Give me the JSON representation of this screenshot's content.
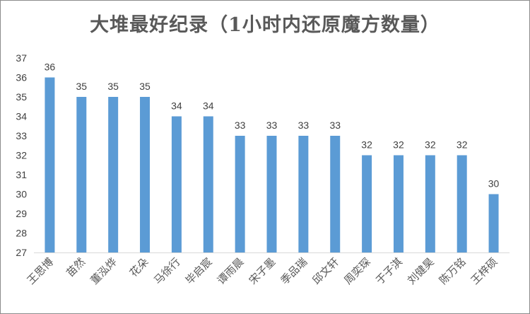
{
  "chart_data": {
    "type": "bar",
    "title": "大堆最好纪录（1小时内还原魔方数量）",
    "xlabel": "",
    "ylabel": "",
    "categories": [
      "王思博",
      "苗然",
      "董泓烨",
      "花朵",
      "马徐行",
      "毕启宸",
      "谭雨晨",
      "宋子墨",
      "季品瑞",
      "邱文轩",
      "周奕琛",
      "于子淇",
      "刘健昊",
      "陈万铭",
      "王梓硕"
    ],
    "values": [
      36,
      35,
      35,
      35,
      34,
      34,
      33,
      33,
      33,
      33,
      32,
      32,
      32,
      32,
      30
    ],
    "ylim": [
      27,
      37
    ],
    "yticks": [
      "27",
      "28",
      "29",
      "30",
      "31",
      "32",
      "33",
      "34",
      "35",
      "36",
      "37"
    ],
    "grid": false,
    "legend": "none",
    "bar_color": "#5b9bd5",
    "data_labels": true
  }
}
